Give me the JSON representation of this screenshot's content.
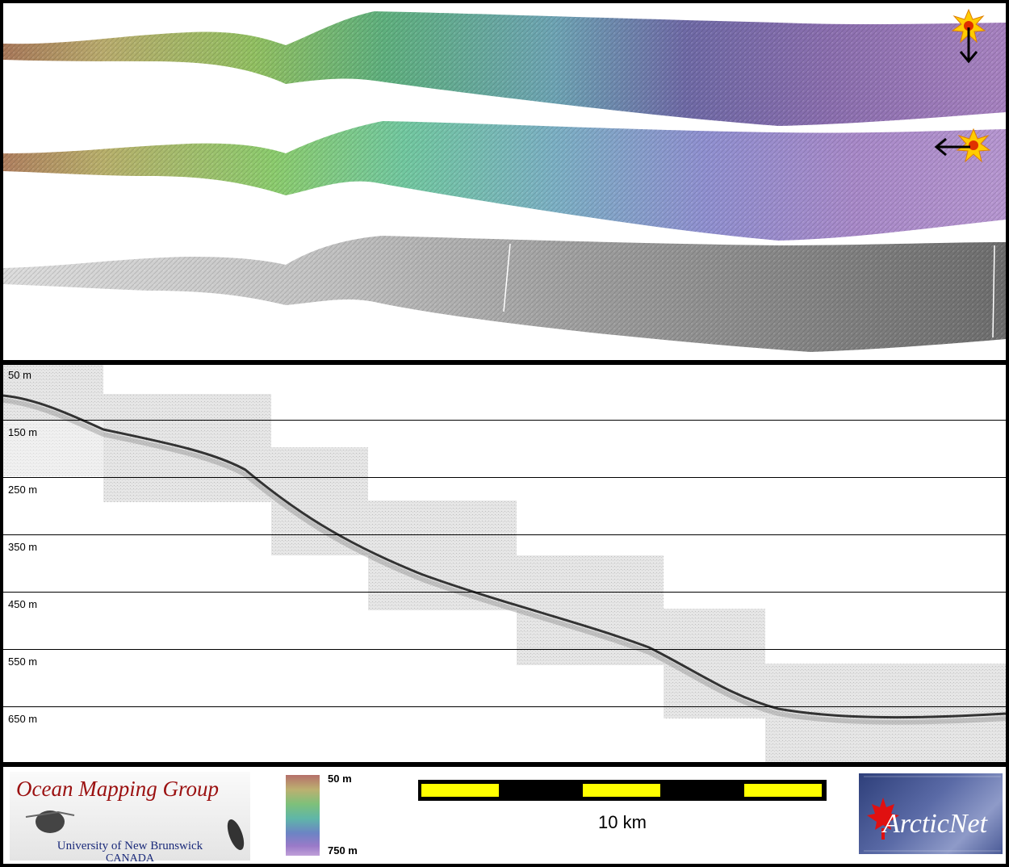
{
  "profile": {
    "depth_labels": [
      "50 m",
      "150 m",
      "250 m",
      "350 m",
      "450 m",
      "550 m",
      "650 m"
    ]
  },
  "footer": {
    "omg_title": "Ocean Mapping Group",
    "omg_university": "University of New Brunswick",
    "omg_country": "CANADA",
    "legend_top": "50 m",
    "legend_bottom": "750 m",
    "scale_label": "10 km",
    "arcticnet": "ArcticNet"
  },
  "colors": {
    "scale_yellow": "#ffff00",
    "scale_black": "#000000",
    "sun_icon": "#ffcc00"
  },
  "icons": [
    "sun-icon",
    "down-arrow-icon",
    "left-arrow-icon",
    "maple-leaf-icon"
  ]
}
